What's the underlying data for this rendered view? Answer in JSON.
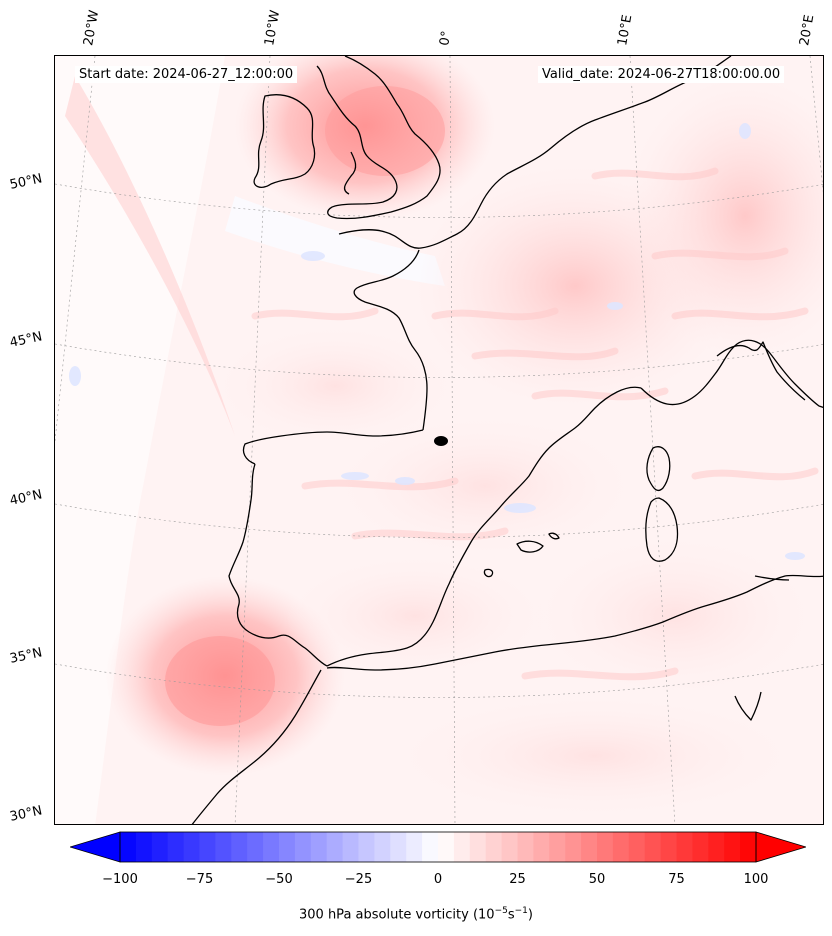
{
  "header": {
    "start_date": "Start date: 2024-06-27_12:00:00",
    "valid_date": "Valid_date: 2024-06-27T18:00:00.00"
  },
  "longitude_labels": [
    "20°W",
    "10°W",
    "0°",
    "10°E",
    "20°E"
  ],
  "latitude_labels": [
    "50°N",
    "45°N",
    "40°N",
    "35°N",
    "30°N"
  ],
  "colorbar": {
    "ticks": [
      "−100",
      "−75",
      "−50",
      "−25",
      "0",
      "25",
      "50",
      "75",
      "100"
    ],
    "label_main": "300 hPa absolute vorticity (10",
    "label_exp1": "−5",
    "label_mid": "s",
    "label_exp2": "−1",
    "label_end": ")",
    "min": -100,
    "max": 100,
    "low_color": "#0000ff",
    "high_color": "#ff0000"
  },
  "colors": {
    "coastline": "#000000",
    "background": "#fff7f7",
    "strong_positive": "#ff8a8a"
  }
}
